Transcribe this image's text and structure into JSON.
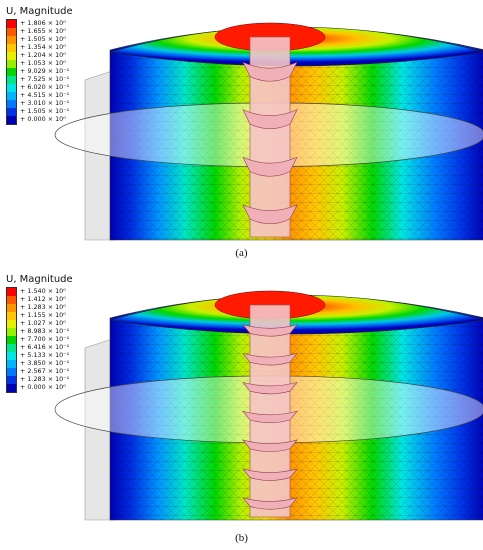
{
  "figure": {
    "panels": [
      {
        "id": "a",
        "caption": "(a)",
        "legend": {
          "title": "U, Magnitude",
          "values": [
            "+ 1.806 × 10⁰",
            "+ 1.655 × 10⁰",
            "+ 1.505 × 10⁰",
            "+ 1.354 × 10⁰",
            "+ 1.204 × 10⁰",
            "+ 1.053 × 10⁰",
            "+ 9.029 × 10⁻¹",
            "+ 7.525 × 10⁻¹",
            "+ 6.020 × 10⁻¹",
            "+ 4.515 × 10⁻¹",
            "+ 3.010 × 10⁻¹",
            "+ 1.505 × 10⁻¹",
            "+ 0.000 × 10⁰"
          ]
        },
        "screw_threads": 4
      },
      {
        "id": "b",
        "caption": "(b)",
        "legend": {
          "title": "U, Magnitude",
          "values": [
            "+ 1.540 × 10⁰",
            "+ 1.412 × 10⁰",
            "+ 1.283 × 10⁰",
            "+ 1.155 × 10⁰",
            "+ 1.027 × 10⁰",
            "+ 8.983 × 10⁻¹",
            "+ 7.700 × 10⁻¹",
            "+ 6.416 × 10⁻¹",
            "+ 5.133 × 10⁻¹",
            "+ 3.850 × 10⁻¹",
            "+ 2.567 × 10⁻¹",
            "+ 1.283 × 10⁻¹",
            "+ 0.000 × 10⁰"
          ]
        },
        "screw_threads": 7
      }
    ],
    "colormap": [
      "#ff0000",
      "#ff5a00",
      "#ff9600",
      "#ffc800",
      "#e6f000",
      "#96f000",
      "#00d700",
      "#00e68c",
      "#00e6e6",
      "#00b4ff",
      "#0078ff",
      "#0032e6",
      "#0000b4"
    ]
  }
}
